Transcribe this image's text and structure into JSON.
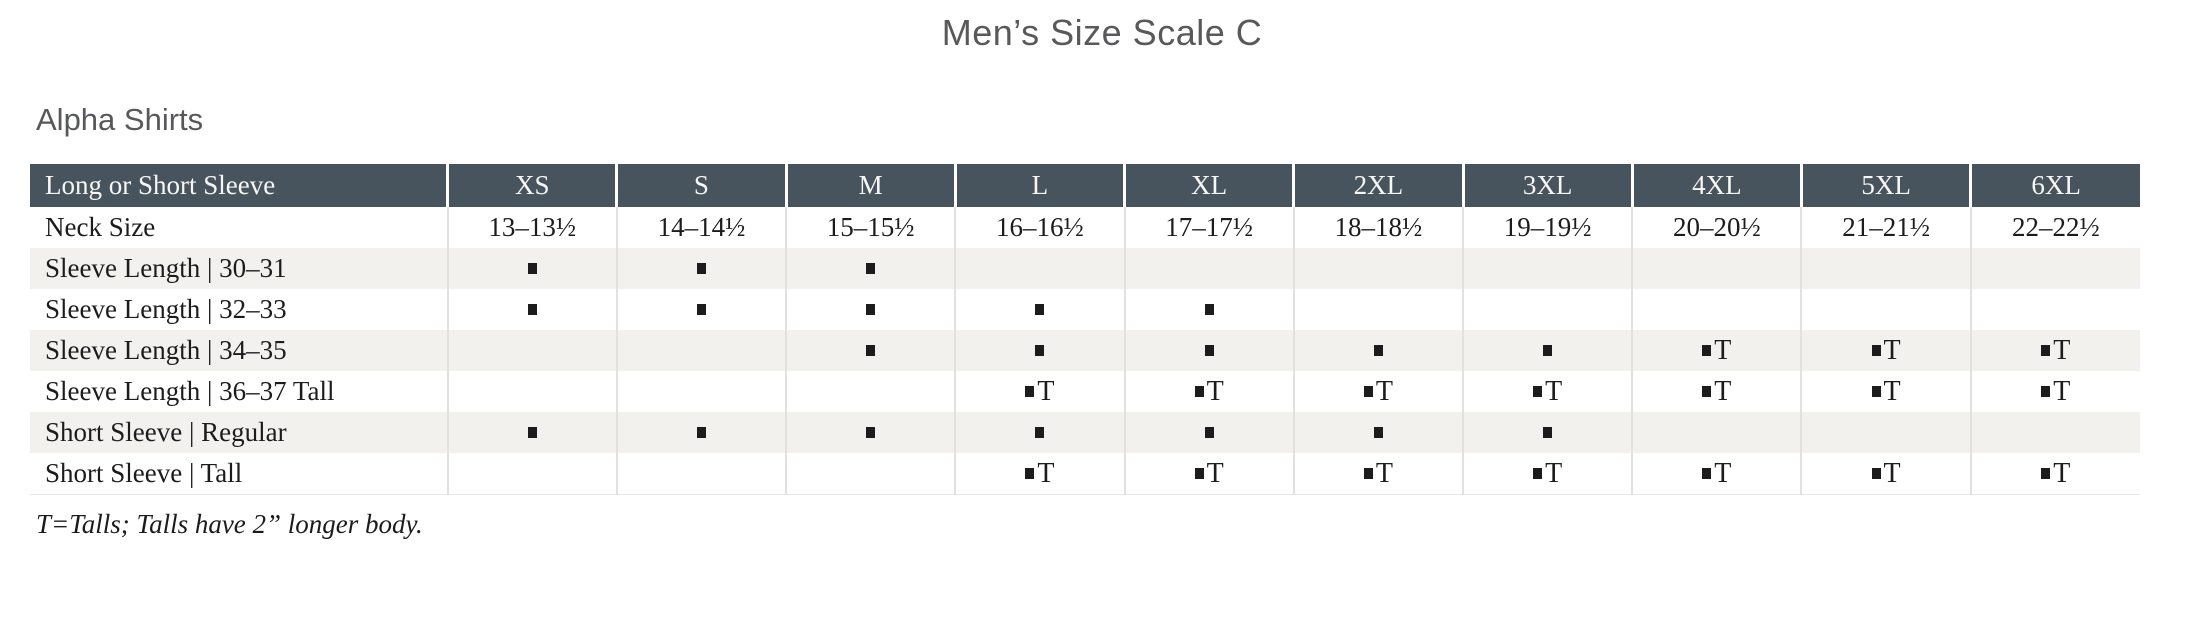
{
  "page": {
    "title": "Men’s Size Scale C",
    "section_heading": "Alpha Shirts",
    "footnote": "T=Talls; Talls have 2” longer body."
  },
  "colors": {
    "header_bg": "#47545E",
    "header_text": "#F7F6F3",
    "stripe_bg": "#F2F1EE",
    "body_text": "#1C1C1C",
    "heading_text": "#58595B",
    "divider": "#E3E1DE"
  },
  "table": {
    "corner_label": "Long or Short Sleeve",
    "size_columns": [
      "XS",
      "S",
      "M",
      "L",
      "XL",
      "2XL",
      "3XL",
      "4XL",
      "5XL",
      "6XL"
    ],
    "marker_glyph": "▪",
    "tall_marker": "▪T",
    "rows": [
      {
        "label": "Neck Size",
        "cells": [
          "13–13½",
          "14–14½",
          "15–15½",
          "16–16½",
          "17–17½",
          "18–18½",
          "19–19½",
          "20–20½",
          "21–21½",
          "22–22½"
        ]
      },
      {
        "label": "Sleeve Length | 30–31",
        "cells": [
          "▪",
          "▪",
          "▪",
          "",
          "",
          "",
          "",
          "",
          "",
          ""
        ]
      },
      {
        "label": "Sleeve Length | 32–33",
        "cells": [
          "▪",
          "▪",
          "▪",
          "▪",
          "▪",
          "",
          "",
          "",
          "",
          ""
        ]
      },
      {
        "label": "Sleeve Length | 34–35",
        "cells": [
          "",
          "",
          "▪",
          "▪",
          "▪",
          "▪",
          "▪",
          "▪T",
          "▪T",
          "▪T"
        ]
      },
      {
        "label": "Sleeve Length | 36–37 Tall",
        "cells": [
          "",
          "",
          "",
          "▪T",
          "▪T",
          "▪T",
          "▪T",
          "▪T",
          "▪T",
          "▪T"
        ]
      },
      {
        "label": "Short Sleeve | Regular",
        "cells": [
          "▪",
          "▪",
          "▪",
          "▪",
          "▪",
          "▪",
          "▪",
          "",
          "",
          ""
        ]
      },
      {
        "label": "Short Sleeve | Tall",
        "cells": [
          "",
          "",
          "",
          "▪T",
          "▪T",
          "▪T",
          "▪T",
          "▪T",
          "▪T",
          "▪T"
        ]
      }
    ]
  }
}
